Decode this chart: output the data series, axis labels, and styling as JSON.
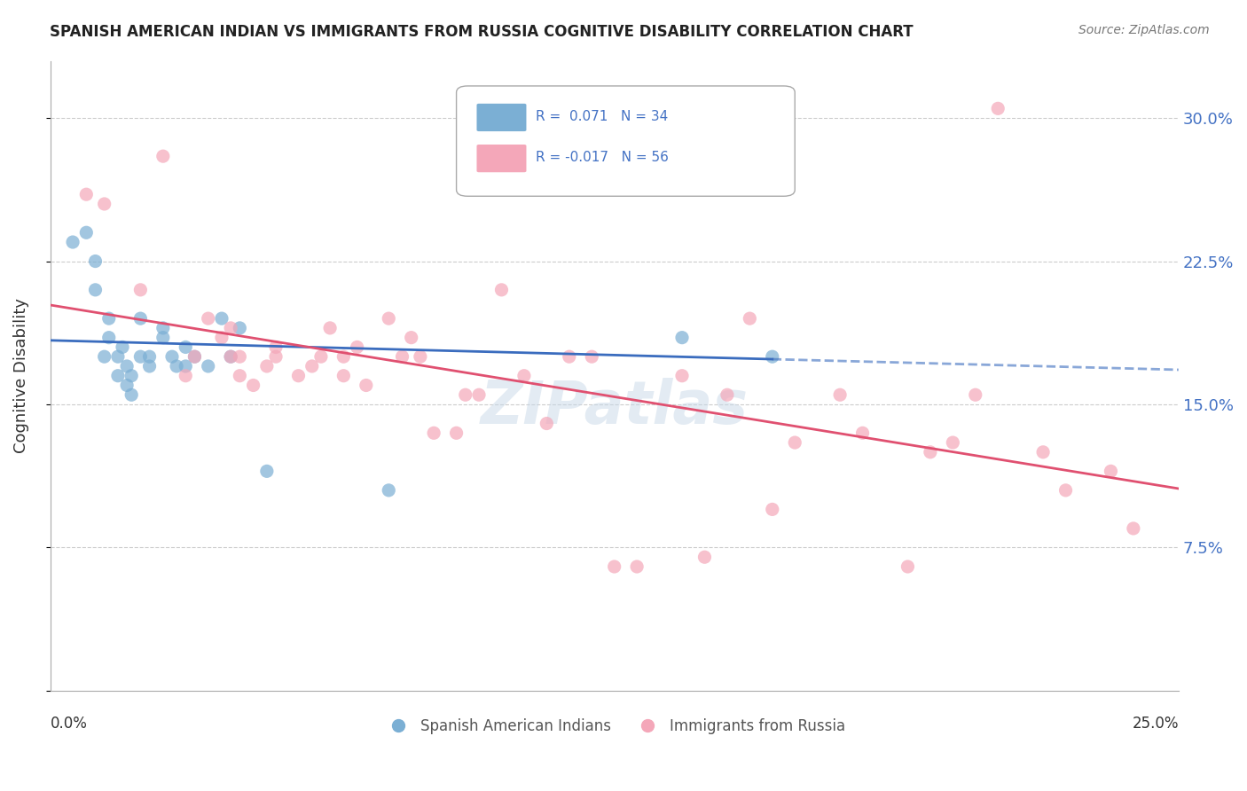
{
  "title": "SPANISH AMERICAN INDIAN VS IMMIGRANTS FROM RUSSIA COGNITIVE DISABILITY CORRELATION CHART",
  "source": "Source: ZipAtlas.com",
  "ylabel": "Cognitive Disability",
  "y_ticks": [
    0.0,
    0.075,
    0.15,
    0.225,
    0.3
  ],
  "y_tick_labels": [
    "",
    "7.5%",
    "15.0%",
    "22.5%",
    "30.0%"
  ],
  "x_lim": [
    0.0,
    0.25
  ],
  "y_lim": [
    0.0,
    0.33
  ],
  "blue_color": "#7bafd4",
  "pink_color": "#f4a7b9",
  "line_blue": "#3a6cbe",
  "line_pink": "#e05070",
  "watermark": "ZIPatlas",
  "blue_scatter_x": [
    0.005,
    0.008,
    0.01,
    0.01,
    0.012,
    0.013,
    0.013,
    0.015,
    0.015,
    0.016,
    0.017,
    0.017,
    0.018,
    0.018,
    0.02,
    0.02,
    0.022,
    0.022,
    0.025,
    0.025,
    0.027,
    0.028,
    0.03,
    0.03,
    0.032,
    0.035,
    0.038,
    0.04,
    0.042,
    0.048,
    0.075,
    0.095,
    0.14,
    0.16
  ],
  "blue_scatter_y": [
    0.235,
    0.24,
    0.21,
    0.225,
    0.175,
    0.195,
    0.185,
    0.165,
    0.175,
    0.18,
    0.16,
    0.17,
    0.155,
    0.165,
    0.175,
    0.195,
    0.17,
    0.175,
    0.185,
    0.19,
    0.175,
    0.17,
    0.17,
    0.18,
    0.175,
    0.17,
    0.195,
    0.175,
    0.19,
    0.115,
    0.105,
    0.265,
    0.185,
    0.175
  ],
  "pink_scatter_x": [
    0.008,
    0.012,
    0.02,
    0.025,
    0.03,
    0.032,
    0.035,
    0.038,
    0.04,
    0.04,
    0.042,
    0.042,
    0.045,
    0.048,
    0.05,
    0.05,
    0.055,
    0.058,
    0.06,
    0.062,
    0.065,
    0.065,
    0.068,
    0.07,
    0.075,
    0.078,
    0.08,
    0.082,
    0.085,
    0.09,
    0.092,
    0.095,
    0.1,
    0.105,
    0.11,
    0.115,
    0.12,
    0.125,
    0.13,
    0.14,
    0.145,
    0.15,
    0.155,
    0.16,
    0.165,
    0.175,
    0.18,
    0.19,
    0.195,
    0.2,
    0.205,
    0.21,
    0.22,
    0.225,
    0.235,
    0.24
  ],
  "pink_scatter_y": [
    0.26,
    0.255,
    0.21,
    0.28,
    0.165,
    0.175,
    0.195,
    0.185,
    0.175,
    0.19,
    0.165,
    0.175,
    0.16,
    0.17,
    0.175,
    0.18,
    0.165,
    0.17,
    0.175,
    0.19,
    0.175,
    0.165,
    0.18,
    0.16,
    0.195,
    0.175,
    0.185,
    0.175,
    0.135,
    0.135,
    0.155,
    0.155,
    0.21,
    0.165,
    0.14,
    0.175,
    0.175,
    0.065,
    0.065,
    0.165,
    0.07,
    0.155,
    0.195,
    0.095,
    0.13,
    0.155,
    0.135,
    0.065,
    0.125,
    0.13,
    0.155,
    0.305,
    0.125,
    0.105,
    0.115,
    0.085
  ]
}
